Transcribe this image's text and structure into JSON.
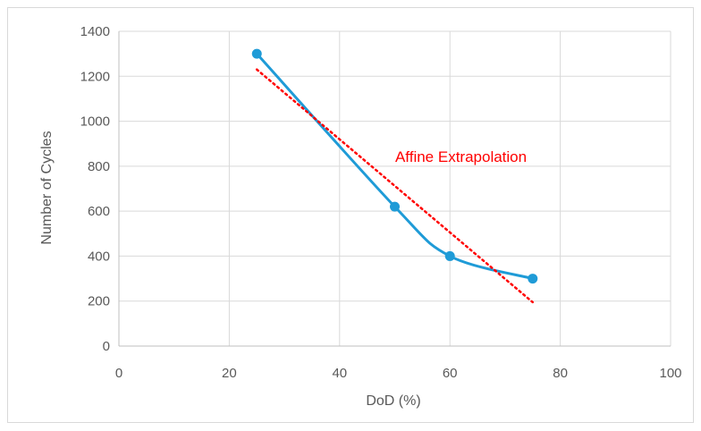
{
  "chart_data": {
    "type": "scatter",
    "xlabel": "DoD (%)",
    "ylabel": "Number of Cycles",
    "xlim": [
      0,
      100
    ],
    "ylim": [
      0,
      1400
    ],
    "xticks": [
      0,
      20,
      40,
      60,
      80,
      100
    ],
    "yticks": [
      0,
      200,
      400,
      600,
      800,
      1000,
      1200,
      1400
    ],
    "grid": true,
    "series": [
      {
        "style": "smoothed line with markers",
        "color": "#1f9bd7",
        "x": [
          25,
          50,
          60,
          75
        ],
        "y": [
          1300,
          620,
          400,
          300
        ]
      },
      {
        "style": "dotted trendline",
        "color": "#ff0000",
        "x": [
          25,
          75
        ],
        "y": [
          1230,
          195
        ]
      }
    ],
    "annotations": [
      {
        "text": "Affine Extrapolation",
        "x": 62,
        "y": 820,
        "color": "#ff0000"
      }
    ]
  }
}
